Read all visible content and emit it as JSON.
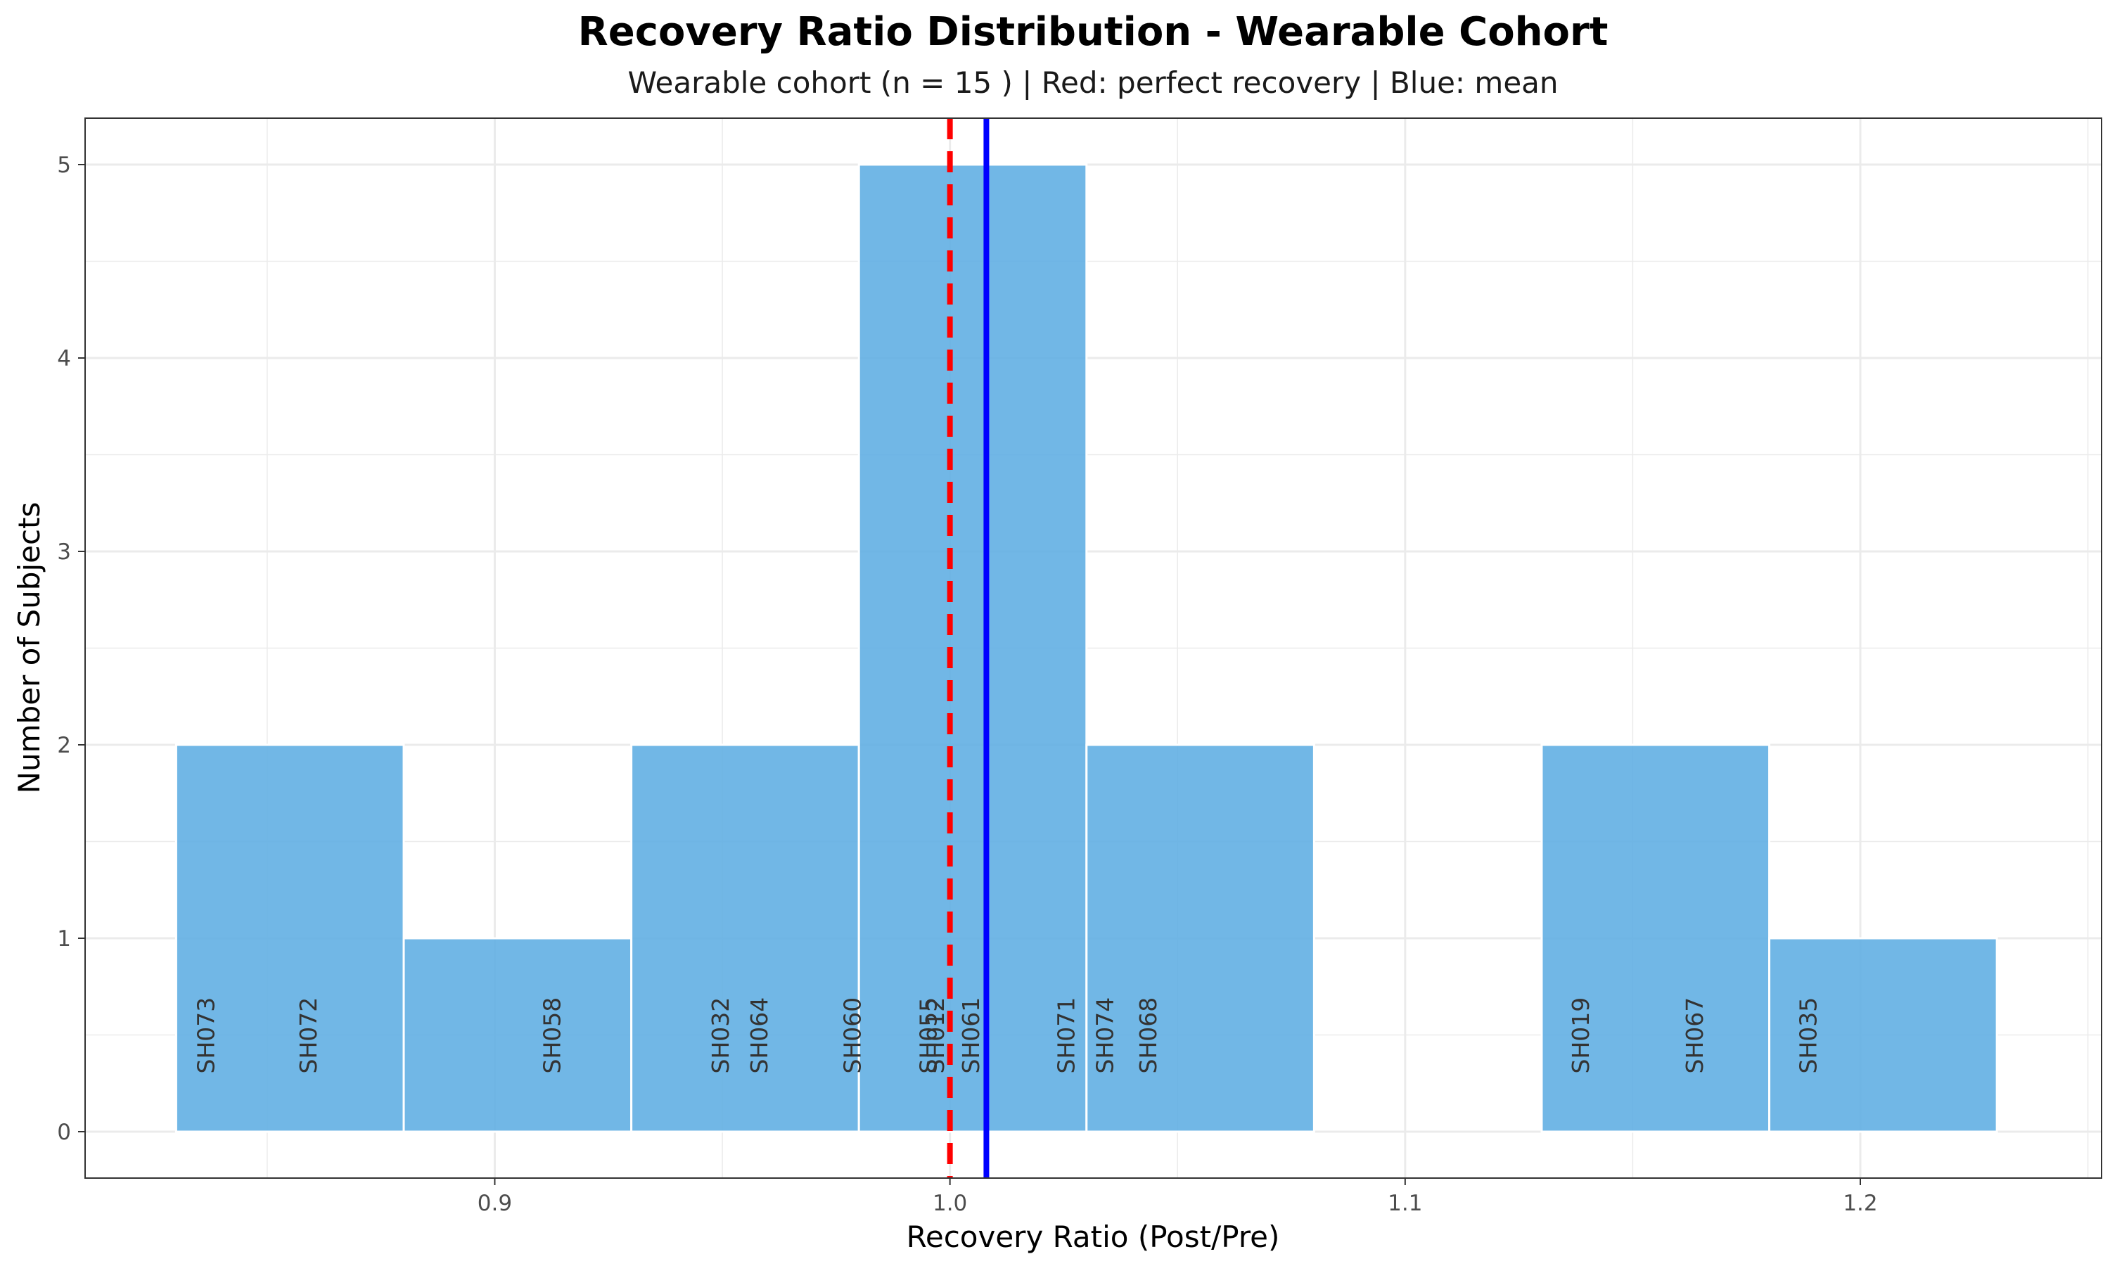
{
  "chart_data": {
    "type": "bar",
    "title": "Recovery Ratio Distribution - Wearable Cohort",
    "subtitle": "Wearable cohort (n = 15 ) | Red: perfect recovery | Blue: mean",
    "xlabel": "Recovery Ratio (Post/Pre)",
    "ylabel": "Number of Subjects",
    "xlim": [
      0.81,
      1.253
    ],
    "ylim": [
      -0.24,
      5.24
    ],
    "x_ticks": [
      0.9,
      1.0,
      1.1,
      1.2
    ],
    "x_tick_labels": [
      "0.9",
      "1.0",
      "1.1",
      "1.2"
    ],
    "y_ticks": [
      0,
      1,
      2,
      3,
      4,
      5
    ],
    "y_tick_labels": [
      "0",
      "1",
      "2",
      "3",
      "4",
      "5"
    ],
    "bin_width": 0.05,
    "bins": [
      {
        "start": 0.83,
        "end": 0.88,
        "count": 2
      },
      {
        "start": 0.88,
        "end": 0.93,
        "count": 1
      },
      {
        "start": 0.93,
        "end": 0.98,
        "count": 2
      },
      {
        "start": 0.98,
        "end": 1.03,
        "count": 5
      },
      {
        "start": 1.03,
        "end": 1.08,
        "count": 2
      },
      {
        "start": 1.08,
        "end": 1.13,
        "count": 0
      },
      {
        "start": 1.13,
        "end": 1.18,
        "count": 2
      },
      {
        "start": 1.18,
        "end": 1.23,
        "count": 1
      }
    ],
    "reference_lines": [
      {
        "x": 1.0,
        "color": "#ff0000",
        "style": "dashed"
      },
      {
        "x": 1.008,
        "color": "#0000ff",
        "style": "solid"
      }
    ],
    "point_labels": [
      {
        "text": "SH073",
        "x": 0.8365
      },
      {
        "text": "SH072",
        "x": 0.859
      },
      {
        "text": "SH058",
        "x": 0.9125
      },
      {
        "text": "SH032",
        "x": 0.9495
      },
      {
        "text": "SH064",
        "x": 0.958
      },
      {
        "text": "SH060",
        "x": 0.9785
      },
      {
        "text": "SH055",
        "x": 0.9952
      },
      {
        "text": "SH012",
        "x": 0.9968
      },
      {
        "text": "SH061",
        "x": 1.0045
      },
      {
        "text": "SH071",
        "x": 1.0255
      },
      {
        "text": "SH074",
        "x": 1.034
      },
      {
        "text": "SH068",
        "x": 1.0435
      },
      {
        "text": "SH019",
        "x": 1.1385
      },
      {
        "text": "SH067",
        "x": 1.1635
      },
      {
        "text": "SH035",
        "x": 1.1885
      }
    ],
    "colors": {
      "bar_fill": "#5dade2",
      "bar_stroke": "#ffffff",
      "perfect_recovery_line": "#ff0000",
      "mean_line": "#0000ff",
      "grid": "#ebebeb",
      "panel_border": "#333333"
    },
    "grid": true,
    "legend": "none"
  }
}
